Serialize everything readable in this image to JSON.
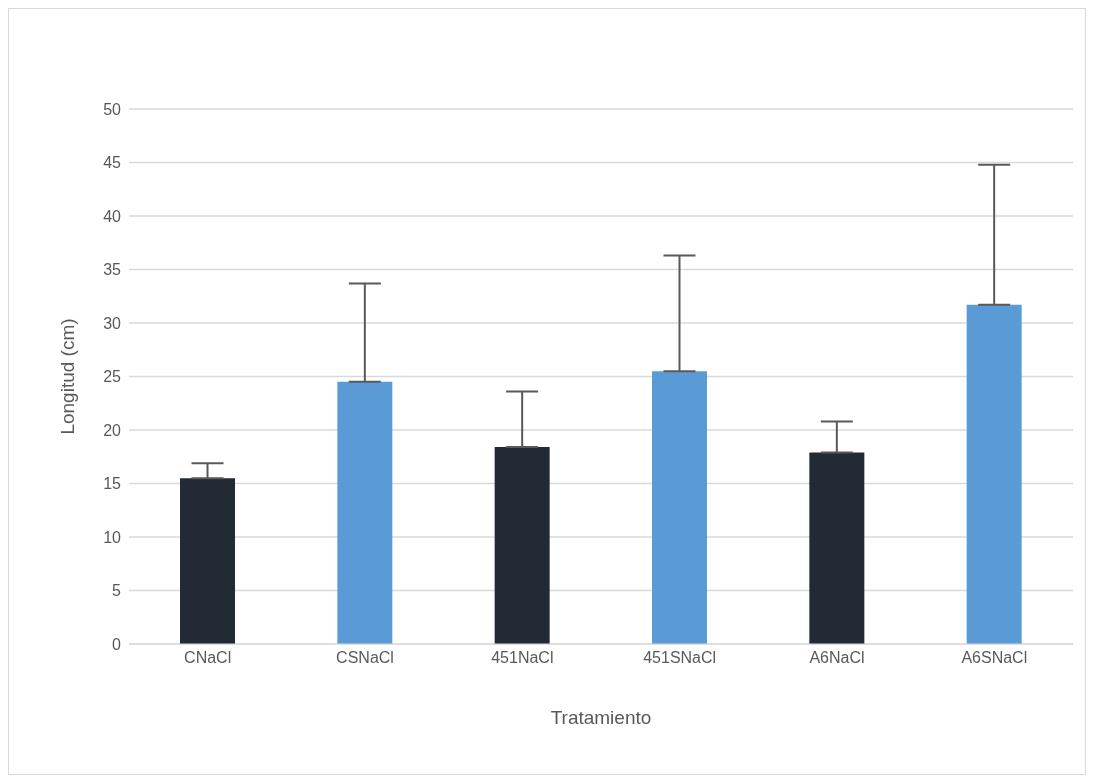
{
  "chart_data": {
    "type": "bar",
    "xlabel": "Tratamiento",
    "ylabel": "Longitud (cm)",
    "categories": [
      "CNaCl",
      "CSNaCl",
      "451NaCl",
      "451SNaCl",
      "A6NaCl",
      "A6SNaCl"
    ],
    "values": [
      15.5,
      24.5,
      18.4,
      25.5,
      17.9,
      31.7
    ],
    "colors": [
      "#222a35",
      "#5b9bd5",
      "#222a35",
      "#5b9bd5",
      "#222a35",
      "#5b9bd5"
    ],
    "errors": [
      [
        15.5,
        16.9
      ],
      [
        24.5,
        33.7
      ],
      [
        18.4,
        23.6
      ],
      [
        25.5,
        36.3
      ],
      [
        17.9,
        20.8
      ],
      [
        31.7,
        44.8
      ]
    ],
    "ylim": [
      0,
      50
    ],
    "yticks": [
      0,
      5,
      10,
      15,
      20,
      25,
      30,
      35,
      40,
      45,
      50
    ],
    "grid": "y",
    "legend": false
  }
}
